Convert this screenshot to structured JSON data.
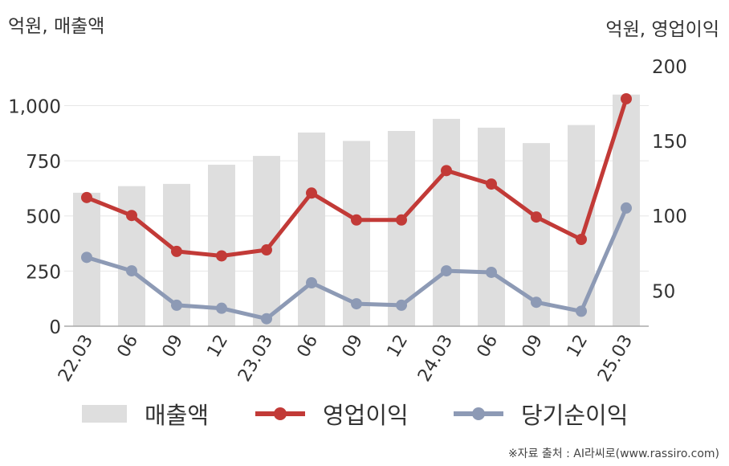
{
  "unit_left": "억원, 매출액",
  "unit_right": "억원, 영업이익",
  "source": "※자료 출처 : AI라씨로(www.rassiro.com)",
  "colors": {
    "bar": "#dedede",
    "op": "#c23a37",
    "net": "#8d9ab5",
    "axis": "#aaaaaa",
    "grid": "#e6e6e6",
    "text": "#333333"
  },
  "legend": [
    {
      "label": "매출액",
      "kind": "bar",
      "color": "#dedede"
    },
    {
      "label": "영업이익",
      "kind": "line",
      "color": "#c23a37"
    },
    {
      "label": "당기순이익",
      "kind": "line",
      "color": "#8d9ab5"
    }
  ],
  "chart_data": {
    "type": "bar+line",
    "categories": [
      "22.03",
      "06",
      "09",
      "12",
      "23.03",
      "06",
      "09",
      "12",
      "24.03",
      "06",
      "09",
      "12",
      "25.03"
    ],
    "left_axis": {
      "unit": "억원, 매출액",
      "ylim": [
        0,
        1100
      ],
      "ticks": [
        0,
        250,
        500,
        750,
        1000
      ],
      "tick_labels": [
        "0",
        "250",
        "500",
        "750",
        "1,000"
      ]
    },
    "right_axis": {
      "unit": "억원, 영업이익",
      "ylim": [
        26,
        200
      ],
      "ticks": [
        50,
        100,
        150,
        200
      ],
      "tick_labels": [
        "50",
        "100",
        "150",
        "200"
      ]
    },
    "series": [
      {
        "name": "매출액",
        "type": "bar",
        "axis": "left",
        "values": [
          605,
          635,
          645,
          732,
          772,
          878,
          840,
          885,
          940,
          900,
          830,
          912,
          1050
        ]
      },
      {
        "name": "영업이익",
        "type": "line",
        "axis": "right",
        "values": [
          112,
          100,
          76,
          73,
          77,
          115,
          97,
          97,
          130,
          121,
          99,
          84,
          178
        ]
      },
      {
        "name": "당기순이익",
        "type": "line",
        "axis": "right",
        "values": [
          72,
          63,
          40,
          38,
          31,
          55,
          41,
          40,
          63,
          62,
          42,
          36,
          105
        ]
      }
    ],
    "grid": true,
    "legend_position": "bottom"
  }
}
